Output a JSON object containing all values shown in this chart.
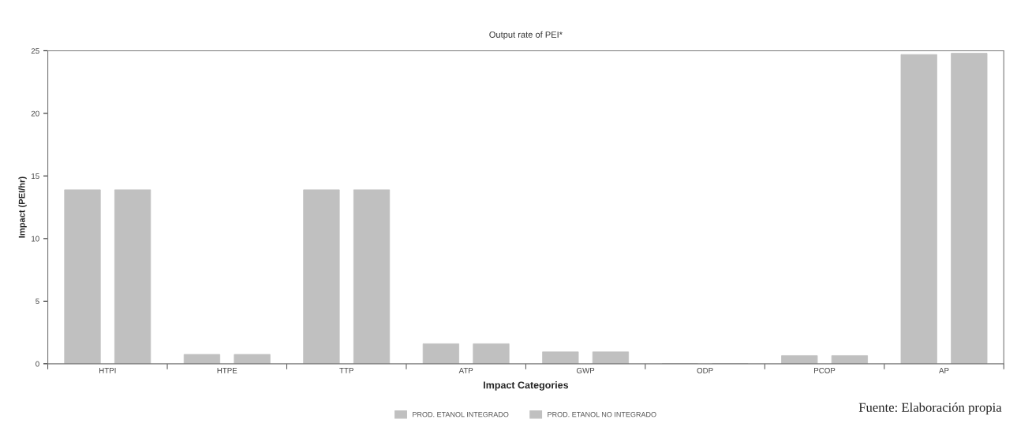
{
  "chart_data": {
    "type": "bar",
    "title": "Output rate of PEI*",
    "xlabel": "Impact Categories",
    "ylabel": "Impact (PEI/hr)",
    "categories": [
      "HTPI",
      "HTPE",
      "TTP",
      "ATP",
      "GWP",
      "ODP",
      "PCOP",
      "AP"
    ],
    "series": [
      {
        "name": "PROD. ETANOL INTEGRADO",
        "color": "#c0c0c0",
        "values": [
          13.9,
          0.75,
          13.9,
          1.6,
          0.95,
          0,
          0.65,
          24.7
        ]
      },
      {
        "name": "PROD. ETANOL NO INTEGRADO",
        "color": "#c0c0c0",
        "values": [
          13.9,
          0.75,
          13.9,
          1.6,
          0.95,
          0,
          0.65,
          24.8
        ]
      }
    ],
    "ylim": [
      0,
      25
    ],
    "yticks": [
      0,
      5,
      10,
      15,
      20,
      25
    ],
    "grid": false,
    "legend": "bottom",
    "annotations": [
      "Fuente: Elaboración propia"
    ]
  }
}
